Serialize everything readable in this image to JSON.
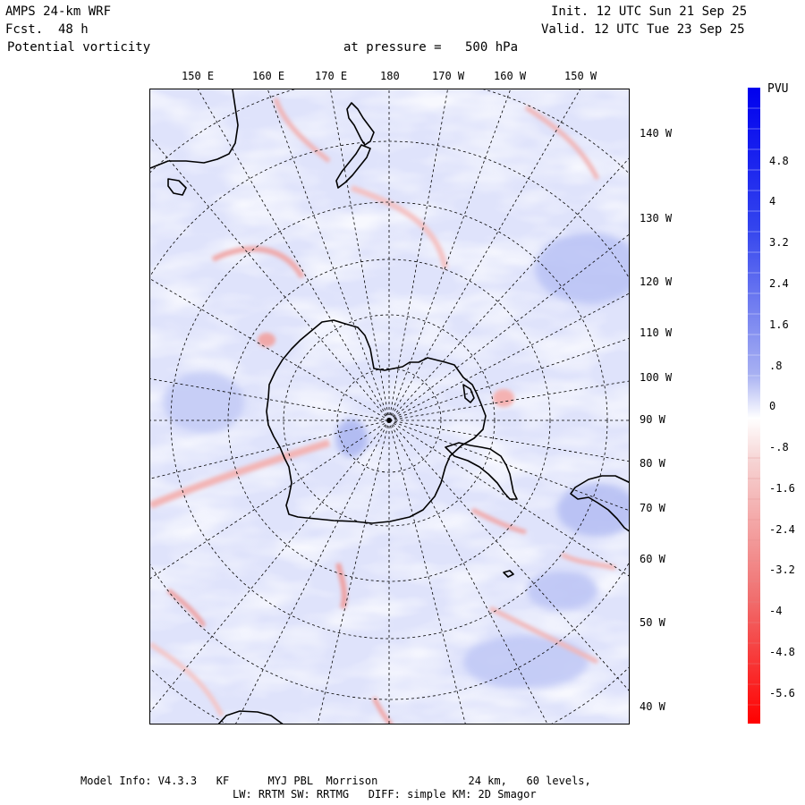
{
  "header": {
    "model": "AMPS 24-km WRF",
    "fcst_label": "Fcst.",
    "fcst_value": "48 h",
    "field": "Potential vorticity",
    "level_label": "at pressure =",
    "level_value": "500 hPa",
    "init": "Init. 12 UTC Sun 21 Sep 25",
    "valid": "Valid. 12 UTC Tue 23 Sep 25"
  },
  "map": {
    "projection": "polar-stereographic-south",
    "top_lon_labels": [
      "150 E",
      "160 E",
      "170 E",
      "180",
      "170 W",
      "160 W",
      "150 W"
    ],
    "right_lon_labels": [
      "140 W",
      "130 W",
      "120 W",
      "110 W",
      "100 W",
      "90 W",
      "80 W",
      "70 W",
      "60 W",
      "50 W",
      "40 W"
    ]
  },
  "colorbar": {
    "title": "PVU",
    "tick_labels": [
      "4.8",
      "4",
      "3.2",
      "2.4",
      "1.6",
      ".8",
      "0",
      "-.8",
      "-1.6",
      "-2.4",
      "-3.2",
      "-4",
      "-4.8",
      "-5.6"
    ],
    "positive_color": "#0000ee",
    "zero_color": "#ffffff",
    "negative_color": "#ff0000"
  },
  "footer": {
    "line1": "Model Info: V4.3.3   KF      MYJ PBL  Morrison              24 km,   60 levels,",
    "line2": "LW: RRTM SW: RRTMG   DIFF: simple KM: 2D Smagor"
  }
}
